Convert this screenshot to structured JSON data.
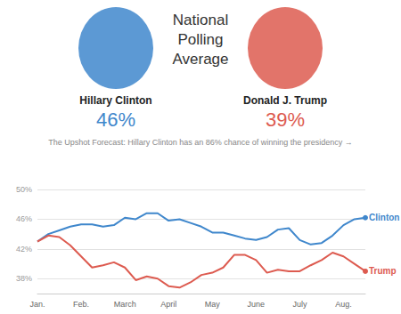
{
  "chart_data": {
    "type": "line",
    "title": "National Polling Average",
    "subtitle": "The Upshot Forecast: Hillary Clinton has an 86% chance of winning the presidency →",
    "categories": [
      "Jan.",
      null,
      null,
      null,
      "Feb.",
      null,
      null,
      null,
      "March",
      null,
      null,
      null,
      "April",
      null,
      null,
      null,
      "May",
      null,
      null,
      null,
      "June",
      null,
      null,
      null,
      "July",
      null,
      null,
      null,
      "Aug.",
      null,
      null
    ],
    "series": [
      {
        "name": "Clinton",
        "label": "Hillary Clinton",
        "headline": 46,
        "headline_label": "46%",
        "color": "#3f87cc",
        "values": [
          43,
          44,
          44.5,
          45,
          45.3,
          45.3,
          45,
          45.2,
          46.2,
          46,
          46.8,
          46.8,
          45.8,
          46,
          45.5,
          45,
          44.2,
          44.2,
          43.8,
          43.4,
          43.2,
          43.6,
          44.6,
          44.8,
          43.2,
          42.6,
          42.8,
          43.8,
          45.2,
          46,
          46.2
        ]
      },
      {
        "name": "Trump",
        "label": "Donald J. Trump",
        "headline": 39,
        "headline_label": "39%",
        "color": "#dd5b50",
        "values": [
          43,
          43.8,
          43.6,
          42.5,
          41,
          39.5,
          39.8,
          40.2,
          39.5,
          37.8,
          38.3,
          38,
          37,
          36.8,
          37.5,
          38.5,
          38.8,
          39.5,
          41.2,
          41.2,
          40.5,
          38.8,
          39.2,
          39,
          39,
          39.8,
          40.5,
          41.5,
          41,
          40,
          39
        ]
      }
    ],
    "ylim": [
      36,
      50
    ],
    "yticks": [
      {
        "value": 38,
        "label": "38%"
      },
      {
        "value": 42,
        "label": "42%"
      },
      {
        "value": 46,
        "label": "46%"
      },
      {
        "value": 50,
        "label": "50%"
      }
    ],
    "grid": true
  }
}
